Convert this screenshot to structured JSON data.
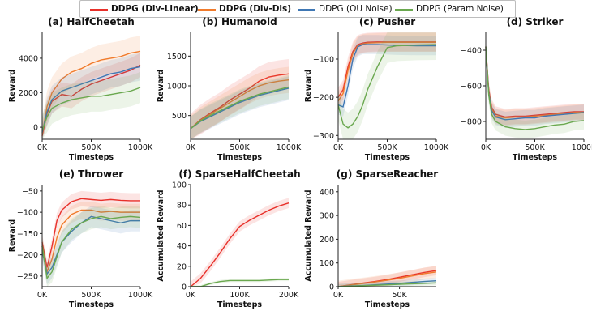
{
  "legend": [
    {
      "name": "DDPG (Div-Linear)",
      "color": "#e8302a",
      "bold": true
    },
    {
      "name": "DDPG (Div-Dis)",
      "color": "#f07b2c",
      "bold": true
    },
    {
      "name": "DDPG (OU Noise)",
      "color": "#3f77b4",
      "bold": false
    },
    {
      "name": "DDPG (Param Noise)",
      "color": "#6aa84f",
      "bold": false
    }
  ],
  "chart_data": [
    {
      "title": "(a) HalfCheetah",
      "type": "line",
      "xlabel": "Timesteps",
      "ylabel": "Reward",
      "xlim": [
        0,
        1000000
      ],
      "ylim": [
        -700,
        5500
      ],
      "xticks": [
        0,
        500000,
        1000000
      ],
      "xticklabels": [
        "0K",
        "500K",
        "1000K"
      ],
      "yticks": [
        0,
        2000,
        4000
      ],
      "yticklabels": [
        "0",
        "2000",
        "4000"
      ],
      "x": [
        0,
        50000,
        100000,
        200000,
        300000,
        400000,
        500000,
        600000,
        700000,
        800000,
        900000,
        1000000
      ],
      "series": [
        {
          "name": "DDPG (Div-Linear)",
          "values": [
            -500,
            800,
            1500,
            1900,
            1800,
            2200,
            2500,
            2700,
            2900,
            3100,
            3300,
            3600
          ],
          "band": 700
        },
        {
          "name": "DDPG (Div-Dis)",
          "values": [
            -400,
            1200,
            2000,
            2800,
            3200,
            3400,
            3700,
            3900,
            4000,
            4100,
            4300,
            4400
          ],
          "band": 900
        },
        {
          "name": "DDPG (OU Noise)",
          "values": [
            -300,
            900,
            1600,
            2100,
            2300,
            2500,
            2700,
            2900,
            3100,
            3200,
            3400,
            3500
          ],
          "band": 800
        },
        {
          "name": "DDPG (Param Noise)",
          "values": [
            -200,
            600,
            1100,
            1400,
            1600,
            1700,
            1800,
            1800,
            1900,
            2000,
            2100,
            2300
          ],
          "band": 900
        }
      ]
    },
    {
      "title": "(b) Humanoid",
      "type": "line",
      "xlabel": "Timesteps",
      "ylabel": "Reward",
      "xlim": [
        0,
        1000000
      ],
      "ylim": [
        100,
        1900
      ],
      "xticks": [
        0,
        500000,
        1000000
      ],
      "xticklabels": [
        "0K",
        "500K",
        "1000K"
      ],
      "yticks": [
        500,
        1000,
        1500
      ],
      "yticklabels": [
        "500",
        "1000",
        "1500"
      ],
      "x": [
        0,
        100000,
        200000,
        300000,
        400000,
        500000,
        600000,
        700000,
        800000,
        900000,
        1000000
      ],
      "series": [
        {
          "name": "DDPG (Div-Linear)",
          "values": [
            280,
            430,
            540,
            640,
            760,
            860,
            960,
            1080,
            1150,
            1180,
            1200
          ],
          "band": 250
        },
        {
          "name": "DDPG (Div-Dis)",
          "values": [
            280,
            420,
            520,
            620,
            720,
            820,
            920,
            1000,
            1050,
            1080,
            1100
          ],
          "band": 220
        },
        {
          "name": "DDPG (OU Noise)",
          "values": [
            280,
            400,
            480,
            560,
            640,
            720,
            780,
            840,
            880,
            920,
            960
          ],
          "band": 200
        },
        {
          "name": "DDPG (Param Noise)",
          "values": [
            280,
            410,
            500,
            580,
            660,
            740,
            800,
            860,
            900,
            940,
            980
          ],
          "band": 200
        }
      ]
    },
    {
      "title": "(c) Pusher",
      "type": "line",
      "xlabel": "Timesteps",
      "ylabel": "Reward",
      "xlim": [
        0,
        1000000
      ],
      "ylim": [
        -310,
        -30
      ],
      "xticks": [
        0,
        500000,
        1000000
      ],
      "xticklabels": [
        "0K",
        "500K",
        "1000K"
      ],
      "yticks": [
        -300,
        -200,
        -100
      ],
      "yticklabels": [
        "−300",
        "−200",
        "−100"
      ],
      "x": [
        0,
        50000,
        100000,
        150000,
        200000,
        250000,
        300000,
        400000,
        500000,
        600000,
        800000,
        1000000
      ],
      "series": [
        {
          "name": "DDPG (Div-Linear)",
          "values": [
            -200,
            -180,
            -120,
            -80,
            -62,
            -58,
            -56,
            -55,
            -55,
            -55,
            -55,
            -55
          ],
          "band": 25
        },
        {
          "name": "DDPG (Div-Dis)",
          "values": [
            -210,
            -190,
            -130,
            -85,
            -65,
            -60,
            -58,
            -57,
            -56,
            -56,
            -56,
            -56
          ],
          "band": 25
        },
        {
          "name": "DDPG (OU Noise)",
          "values": [
            -220,
            -225,
            -170,
            -100,
            -68,
            -62,
            -62,
            -62,
            -63,
            -64,
            -65,
            -65
          ],
          "band": 25
        },
        {
          "name": "DDPG (Param Noise)",
          "values": [
            -220,
            -270,
            -280,
            -270,
            -250,
            -220,
            -180,
            -120,
            -70,
            -65,
            -63,
            -62
          ],
          "band": 40
        }
      ]
    },
    {
      "title": "(d) Striker",
      "type": "line",
      "xlabel": "Timesteps",
      "ylabel": "",
      "xlim": [
        0,
        1000000
      ],
      "ylim": [
        -900,
        -300
      ],
      "xticks": [
        0,
        500000,
        1000000
      ],
      "xticklabels": [
        "0K",
        "500K",
        "1000K"
      ],
      "yticks": [
        -800,
        -600,
        -400
      ],
      "yticklabels": [
        "−800",
        "−600",
        "−400"
      ],
      "x": [
        0,
        30000,
        60000,
        100000,
        200000,
        300000,
        400000,
        500000,
        600000,
        700000,
        800000,
        900000,
        1000000
      ],
      "series": [
        {
          "name": "DDPG (Div-Linear)",
          "values": [
            -380,
            -620,
            -720,
            -760,
            -775,
            -770,
            -770,
            -765,
            -760,
            -755,
            -750,
            -745,
            -745
          ],
          "band": 45
        },
        {
          "name": "DDPG (Div-Dis)",
          "values": [
            -380,
            -630,
            -730,
            -770,
            -780,
            -775,
            -775,
            -770,
            -765,
            -760,
            -755,
            -750,
            -748
          ],
          "band": 45
        },
        {
          "name": "DDPG (OU Noise)",
          "values": [
            -380,
            -640,
            -740,
            -775,
            -790,
            -785,
            -780,
            -780,
            -770,
            -765,
            -760,
            -755,
            -750
          ],
          "band": 45
        },
        {
          "name": "DDPG (Param Noise)",
          "values": [
            -380,
            -650,
            -760,
            -800,
            -830,
            -840,
            -845,
            -840,
            -830,
            -820,
            -815,
            -800,
            -795
          ],
          "band": 50
        }
      ]
    },
    {
      "title": "(e) Thrower",
      "type": "line",
      "xlabel": "Timesteps",
      "ylabel": "Reward",
      "xlim": [
        0,
        1000000
      ],
      "ylim": [
        -275,
        -35
      ],
      "xticks": [
        0,
        500000,
        1000000
      ],
      "xticklabels": [
        "0K",
        "500K",
        "1000K"
      ],
      "yticks": [
        -250,
        -200,
        -150,
        -100,
        -50
      ],
      "yticklabels": [
        "−250",
        "−200",
        "−150",
        "−100",
        "−50"
      ],
      "x": [
        0,
        50000,
        100000,
        150000,
        200000,
        300000,
        400000,
        500000,
        600000,
        700000,
        800000,
        900000,
        1000000
      ],
      "series": [
        {
          "name": "DDPG (Div-Linear)",
          "values": [
            -170,
            -230,
            -180,
            -120,
            -95,
            -75,
            -68,
            -70,
            -72,
            -70,
            -72,
            -73,
            -73
          ],
          "band": 18
        },
        {
          "name": "DDPG (Div-Dis)",
          "values": [
            -180,
            -240,
            -210,
            -160,
            -130,
            -105,
            -95,
            -95,
            -100,
            -98,
            -100,
            -100,
            -100
          ],
          "band": 20
        },
        {
          "name": "DDPG (OU Noise)",
          "values": [
            -190,
            -245,
            -230,
            -200,
            -170,
            -145,
            -125,
            -110,
            -115,
            -120,
            -125,
            -120,
            -120
          ],
          "band": 25
        },
        {
          "name": "DDPG (Param Noise)",
          "values": [
            -180,
            -255,
            -240,
            -205,
            -170,
            -140,
            -125,
            -115,
            -110,
            -115,
            -112,
            -110,
            -112
          ],
          "band": 25
        }
      ]
    },
    {
      "title": "(f) SparseHalfCheetah",
      "type": "line",
      "xlabel": "Timesteps",
      "ylabel": "Accumulated Reward",
      "xlim": [
        0,
        200000
      ],
      "ylim": [
        0,
        100
      ],
      "xticks": [
        0,
        100000,
        200000
      ],
      "xticklabels": [
        "0K",
        "100K",
        "200K"
      ],
      "yticks": [
        0,
        20,
        40,
        60,
        80,
        100
      ],
      "yticklabels": [
        "0",
        "20",
        "40",
        "60",
        "80",
        "100"
      ],
      "x": [
        0,
        20000,
        40000,
        60000,
        80000,
        100000,
        120000,
        140000,
        160000,
        180000,
        200000
      ],
      "series": [
        {
          "name": "DDPG (Div-Linear)",
          "values": [
            0,
            8,
            20,
            33,
            47,
            59,
            65,
            70,
            75,
            79,
            82
          ],
          "band": 5
        },
        {
          "name": "DDPG (Div-Dis)",
          "values": [
            0,
            0,
            0,
            0,
            0,
            0,
            0,
            0,
            0,
            0,
            0
          ],
          "band": 0
        },
        {
          "name": "DDPG (OU Noise)",
          "values": [
            0,
            0,
            0,
            0,
            0,
            0,
            0,
            0,
            0,
            0,
            0
          ],
          "band": 0
        },
        {
          "name": "DDPG (Param Noise)",
          "values": [
            0,
            0,
            3,
            5,
            6,
            6,
            6,
            6,
            6.5,
            7,
            7
          ],
          "band": 1.5
        }
      ]
    },
    {
      "title": "(g) SparseReacher",
      "type": "line",
      "xlabel": "Timesteps",
      "ylabel": "Accumulated Reward",
      "xlim": [
        0,
        80000
      ],
      "ylim": [
        0,
        430
      ],
      "xticks": [
        0,
        50000
      ],
      "xticklabels": [
        "0K",
        "50K"
      ],
      "yticks": [
        0,
        100,
        200,
        300,
        400
      ],
      "yticklabels": [
        "0",
        "100",
        "200",
        "300",
        "400"
      ],
      "x": [
        0,
        10000,
        20000,
        30000,
        40000,
        50000,
        60000,
        70000,
        80000
      ],
      "series": [
        {
          "name": "DDPG (Div-Linear)",
          "values": [
            0,
            8,
            15,
            22,
            30,
            40,
            50,
            60,
            68
          ],
          "band": 20
        },
        {
          "name": "DDPG (Div-Dis)",
          "values": [
            0,
            7,
            13,
            20,
            27,
            35,
            45,
            55,
            62
          ],
          "band": 25
        },
        {
          "name": "DDPG (OU Noise)",
          "values": [
            0,
            3,
            5,
            8,
            11,
            14,
            18,
            22,
            25
          ],
          "band": 12
        },
        {
          "name": "DDPG (Param Noise)",
          "values": [
            0,
            2,
            4,
            6,
            8,
            10,
            12,
            14,
            16
          ],
          "band": 10
        }
      ]
    }
  ]
}
